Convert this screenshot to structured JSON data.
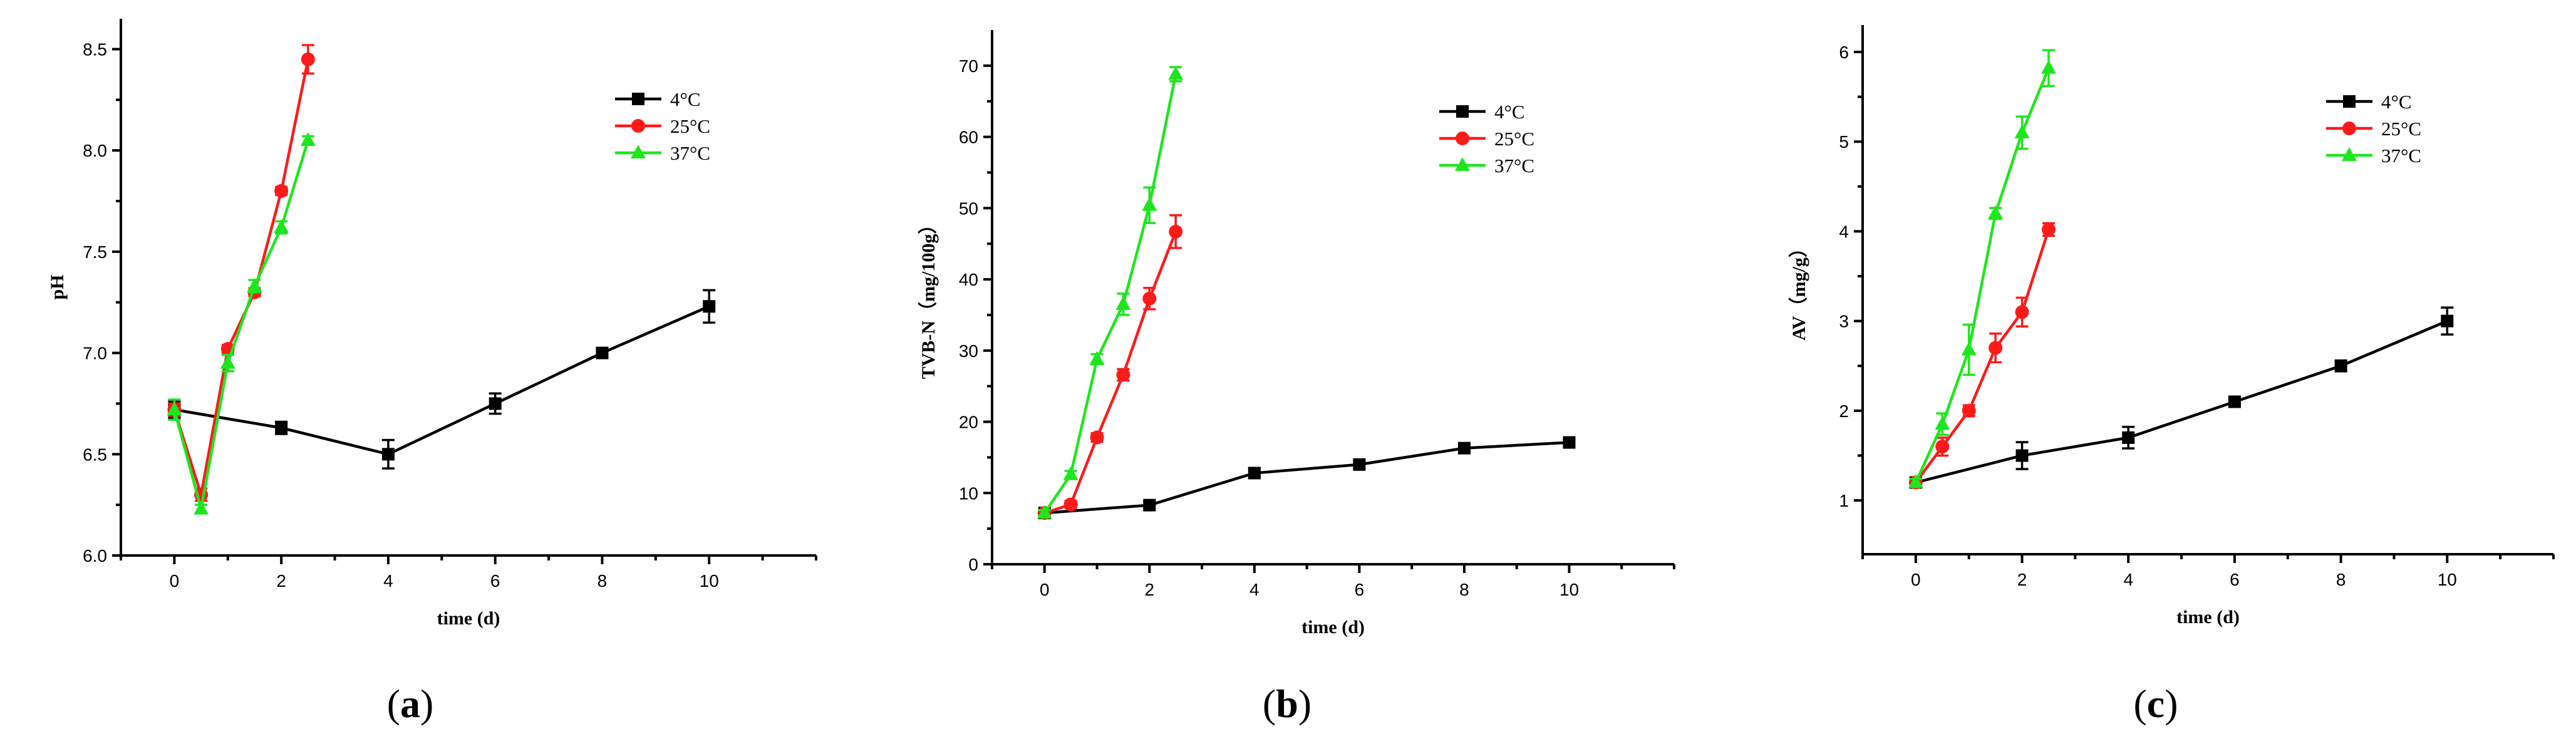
{
  "colors": {
    "4C": "#000000",
    "25C": "#ff1a1a",
    "37C": "#1ee61e"
  },
  "chart_data": [
    {
      "type": "line",
      "panel": "(a)",
      "panel_letter": "a",
      "xlabel": "time (d)",
      "ylabel": "pH",
      "xlim": [
        -1,
        12
      ],
      "ylim": [
        6.0,
        8.65
      ],
      "xticks": [
        0,
        2,
        4,
        6,
        8,
        10
      ],
      "yticks": [
        6.0,
        6.5,
        7.0,
        7.5,
        8.0,
        8.5
      ],
      "ytick_labels": [
        "6.0",
        "6.5",
        "7.0",
        "7.5",
        "8.0",
        "8.5"
      ],
      "series": [
        {
          "name": "4°C",
          "marker": "square",
          "color_key": "4C",
          "x": [
            0,
            2,
            4,
            6,
            8,
            10
          ],
          "y": [
            6.72,
            6.63,
            6.5,
            6.75,
            7.0,
            7.23
          ],
          "err": [
            0.04,
            0.03,
            0.07,
            0.05,
            0.02,
            0.08
          ]
        },
        {
          "name": "25°C",
          "marker": "circle",
          "color_key": "25C",
          "x": [
            0,
            0.5,
            1,
            1.5,
            2,
            2.5
          ],
          "y": [
            6.72,
            6.3,
            7.02,
            7.3,
            7.8,
            8.45
          ],
          "err": [
            0.03,
            0.03,
            0.02,
            0.02,
            0.02,
            0.07
          ]
        },
        {
          "name": "37°C",
          "marker": "triangle",
          "color_key": "37C",
          "x": [
            0,
            0.5,
            1,
            1.5,
            2,
            2.5
          ],
          "y": [
            6.72,
            6.23,
            6.95,
            7.33,
            7.62,
            8.05
          ],
          "err": [
            0.05,
            0.02,
            0.04,
            0.03,
            0.03,
            0.02
          ]
        }
      ]
    },
    {
      "type": "line",
      "panel": "(b)",
      "panel_letter": "b",
      "xlabel": "time (d)",
      "ylabel": "TVB-N（mg/100g）",
      "xlim": [
        -1,
        12
      ],
      "ylim": [
        0,
        75
      ],
      "xticks": [
        0,
        2,
        4,
        6,
        8,
        10
      ],
      "yticks": [
        0,
        10,
        20,
        30,
        40,
        50,
        60,
        70
      ],
      "ytick_labels": [
        "0",
        "10",
        "20",
        "30",
        "40",
        "50",
        "60",
        "70"
      ],
      "series": [
        {
          "name": "4°C",
          "marker": "square",
          "color_key": "4C",
          "x": [
            0,
            2,
            4,
            6,
            8,
            10
          ],
          "y": [
            7.2,
            8.3,
            12.8,
            14.0,
            16.3,
            17.1
          ],
          "err": [
            0.4,
            0.5,
            0.6,
            0.6,
            0.5,
            0.5
          ]
        },
        {
          "name": "25°C",
          "marker": "circle",
          "color_key": "25C",
          "x": [
            0,
            0.5,
            1,
            1.5,
            2,
            2.5
          ],
          "y": [
            7.2,
            8.4,
            17.8,
            26.6,
            37.3,
            46.7
          ],
          "err": [
            0.4,
            0.5,
            0.6,
            0.8,
            1.5,
            2.3
          ]
        },
        {
          "name": "37°C",
          "marker": "triangle",
          "color_key": "37C",
          "x": [
            0,
            0.5,
            1,
            1.5,
            2,
            2.5
          ],
          "y": [
            7.2,
            12.6,
            28.8,
            36.5,
            50.4,
            68.8
          ],
          "err": [
            0.4,
            0.5,
            0.7,
            1.5,
            2.5,
            1.0
          ]
        }
      ]
    },
    {
      "type": "line",
      "panel": "(c)",
      "panel_letter": "c",
      "xlabel": "time (d)",
      "ylabel": "AV（mg/g）",
      "xlim": [
        -1,
        12
      ],
      "ylim": [
        0.4,
        6.3
      ],
      "xticks": [
        0,
        2,
        4,
        6,
        8,
        10
      ],
      "yticks": [
        1,
        2,
        3,
        4,
        5,
        6
      ],
      "ytick_labels": [
        "1",
        "2",
        "3",
        "4",
        "5",
        "6"
      ],
      "series": [
        {
          "name": "4°C",
          "marker": "square",
          "color_key": "4C",
          "x": [
            0,
            2,
            4,
            6,
            8,
            10
          ],
          "y": [
            1.2,
            1.5,
            1.7,
            2.1,
            2.5,
            3.0
          ],
          "err": [
            0.04,
            0.15,
            0.12,
            0.03,
            0.06,
            0.15
          ]
        },
        {
          "name": "25°C",
          "marker": "circle",
          "color_key": "25C",
          "x": [
            0,
            0.5,
            1,
            1.5,
            2,
            2.5
          ],
          "y": [
            1.2,
            1.6,
            2.0,
            2.7,
            3.1,
            4.02
          ],
          "err": [
            0.04,
            0.1,
            0.06,
            0.16,
            0.16,
            0.07
          ]
        },
        {
          "name": "37°C",
          "marker": "triangle",
          "color_key": "37C",
          "x": [
            0,
            0.5,
            1,
            1.5,
            2,
            2.5
          ],
          "y": [
            1.2,
            1.85,
            2.68,
            4.2,
            5.1,
            5.82
          ],
          "err": [
            0.04,
            0.12,
            0.28,
            0.06,
            0.18,
            0.2
          ]
        }
      ]
    }
  ]
}
